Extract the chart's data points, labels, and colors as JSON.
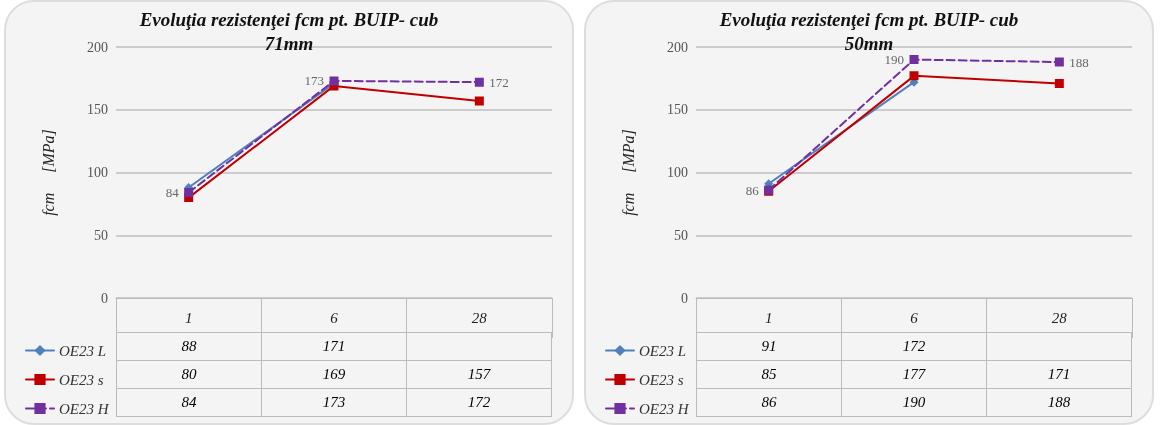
{
  "chart_data": [
    {
      "type": "line",
      "title": "Evoluţia rezistenţei fcm pt. BUIP- cub\n71mm",
      "ylabel": "fcm     [MPa]",
      "categories": [
        "1",
        "6",
        "28"
      ],
      "ylim": [
        0,
        200
      ],
      "yticks": [
        0,
        50,
        100,
        150,
        200
      ],
      "grid": "y",
      "legend": "bottom left",
      "data_labels": true,
      "series": [
        {
          "name": "OE23 L",
          "color": "#4f81bd",
          "values": [
            88,
            171,
            null
          ],
          "marker": "diamond",
          "line_style": "solid"
        },
        {
          "name": "OE23 s",
          "color": "#c00000",
          "values": [
            80,
            169,
            157
          ],
          "marker": "square",
          "line_style": "solid"
        },
        {
          "name": "OE23 H",
          "color": "#7030a0",
          "values": [
            84,
            173,
            172
          ],
          "marker": "square",
          "line_style": "dashed"
        }
      ],
      "annotations": [
        {
          "text": "84",
          "x": "1",
          "y": 84
        },
        {
          "text": "173",
          "x": "6",
          "y": 173
        },
        {
          "text": "172",
          "x": "28",
          "y": 172
        }
      ]
    },
    {
      "type": "line",
      "title": "Evoluţia rezistenţei fcm pt. BUIP- cub\n50mm",
      "ylabel": "fcm     [MPa]",
      "categories": [
        "1",
        "6",
        "28"
      ],
      "ylim": [
        0,
        200
      ],
      "yticks": [
        0,
        50,
        100,
        150,
        200
      ],
      "grid": "y",
      "legend": "bottom left",
      "data_labels": true,
      "series": [
        {
          "name": "OE23 L",
          "color": "#4f81bd",
          "values": [
            91,
            172,
            null
          ],
          "marker": "diamond",
          "line_style": "solid"
        },
        {
          "name": "OE23 s",
          "color": "#c00000",
          "values": [
            85,
            177,
            171
          ],
          "marker": "square",
          "line_style": "solid"
        },
        {
          "name": "OE23 H",
          "color": "#7030a0",
          "values": [
            86,
            190,
            188
          ],
          "marker": "square",
          "line_style": "dashed"
        }
      ],
      "annotations": [
        {
          "text": "86",
          "x": "1",
          "y": 86
        },
        {
          "text": "190",
          "x": "6",
          "y": 190
        },
        {
          "text": "188",
          "x": "28",
          "y": 188
        }
      ]
    }
  ]
}
